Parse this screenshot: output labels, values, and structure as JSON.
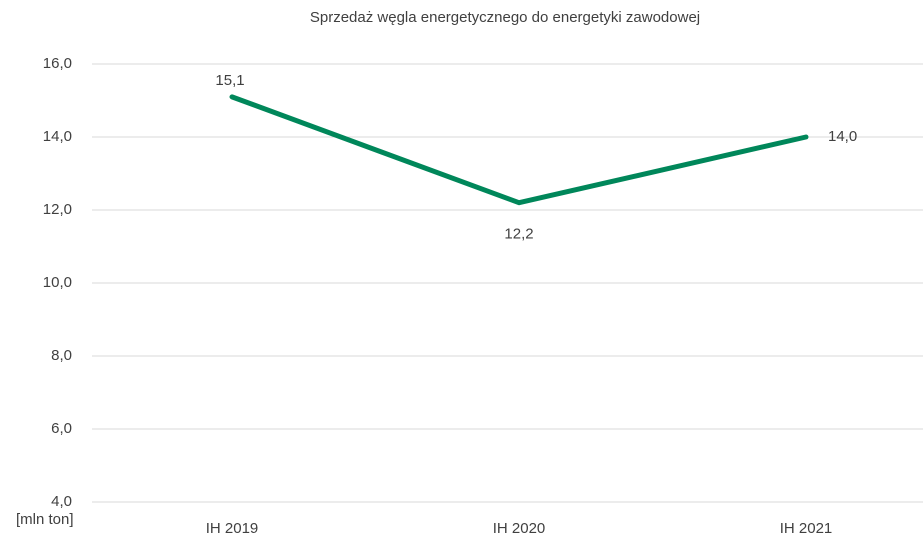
{
  "chart_data": {
    "type": "line",
    "title": "Sprzedaż węgla energetycznego do energetyki zawodowej",
    "y_label": "[mln ton]",
    "categories": [
      "IH 2019",
      "IH 2020",
      "IH 2021"
    ],
    "values": [
      15.1,
      12.2,
      14.0
    ],
    "value_labels": [
      "15,1",
      "12,2",
      "14,0"
    ],
    "color": "#00875a",
    "ylim": [
      4,
      16
    ],
    "yticks": [
      {
        "value": 4,
        "label": "4,0"
      },
      {
        "value": 6,
        "label": "6,0"
      },
      {
        "value": 8,
        "label": "8,0"
      },
      {
        "value": 10,
        "label": "10,0"
      },
      {
        "value": 12,
        "label": "12,0"
      },
      {
        "value": 14,
        "label": "14,0"
      },
      {
        "value": 16,
        "label": "16,0"
      }
    ],
    "grid": true
  }
}
